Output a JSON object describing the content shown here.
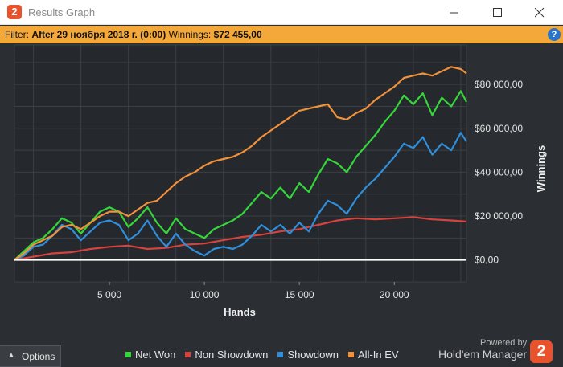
{
  "window": {
    "title": "Results Graph",
    "app_icon_glyph": "2"
  },
  "filter": {
    "label": "Filter:",
    "value": "After 29 ноября 2018 г. (0:00)",
    "winnings_label": "Winnings:",
    "winnings_value": "$72 455,00",
    "help_glyph": "?"
  },
  "chart_data": {
    "type": "line",
    "xlabel": "Hands",
    "ylabel": "Winnings",
    "xlim": [
      0,
      23800
    ],
    "ylim": [
      -10000,
      98000
    ],
    "x_ticks": [
      5000,
      10000,
      15000,
      20000
    ],
    "x_tick_labels": [
      "5 000",
      "10 000",
      "15 000",
      "20 000"
    ],
    "y_ticks": [
      0,
      20000,
      40000,
      60000,
      80000
    ],
    "y_tick_labels": [
      "$0,00",
      "$20 000,00",
      "$40 000,00",
      "$60 000,00",
      "$80 000,00"
    ],
    "grid": true,
    "legend_position": "bottom",
    "colors": {
      "background": "#25282c",
      "grid": "#3c4046",
      "zero_line": "#ffffff"
    },
    "series": [
      {
        "name": "Net Won",
        "color": "#35d63a",
        "x": [
          0,
          500,
          1000,
          1500,
          2000,
          2500,
          3000,
          3500,
          4000,
          4500,
          5000,
          5500,
          6000,
          6500,
          7000,
          7500,
          8000,
          8500,
          9000,
          9500,
          10000,
          10500,
          11000,
          11500,
          12000,
          12500,
          13000,
          13500,
          14000,
          14500,
          15000,
          15500,
          16000,
          16500,
          17000,
          17500,
          18000,
          18500,
          19000,
          19500,
          20000,
          20500,
          21000,
          21500,
          22000,
          22500,
          23000,
          23500,
          23800
        ],
        "y": [
          0,
          4000,
          8000,
          10000,
          14000,
          19000,
          17000,
          12000,
          17000,
          22000,
          24000,
          22000,
          15000,
          19000,
          24000,
          17000,
          12000,
          19000,
          14000,
          12000,
          10000,
          14000,
          16000,
          18000,
          21000,
          26000,
          31000,
          28000,
          33000,
          28000,
          35000,
          31000,
          39000,
          46000,
          44000,
          40000,
          47000,
          52000,
          57000,
          63000,
          68000,
          75000,
          71000,
          76000,
          66000,
          74000,
          70000,
          77000,
          72000
        ]
      },
      {
        "name": "Non Showdown",
        "color": "#d6433f",
        "x": [
          0,
          1000,
          2000,
          3000,
          4000,
          5000,
          6000,
          7000,
          8000,
          9000,
          10000,
          11000,
          12000,
          13000,
          14000,
          15000,
          16000,
          17000,
          18000,
          19000,
          20000,
          21000,
          22000,
          23000,
          23800
        ],
        "y": [
          0,
          1500,
          3000,
          3500,
          5000,
          6000,
          6500,
          5000,
          5500,
          7000,
          7500,
          9000,
          10500,
          11500,
          13000,
          14000,
          16000,
          18000,
          19000,
          18500,
          19000,
          19500,
          18500,
          18000,
          17500
        ]
      },
      {
        "name": "Showdown",
        "color": "#2f8fdb",
        "x": [
          0,
          500,
          1000,
          1500,
          2000,
          2500,
          3000,
          3500,
          4000,
          4500,
          5000,
          5500,
          6000,
          6500,
          7000,
          7500,
          8000,
          8500,
          9000,
          9500,
          10000,
          10500,
          11000,
          11500,
          12000,
          12500,
          13000,
          13500,
          14000,
          14500,
          15000,
          15500,
          16000,
          16500,
          17000,
          17500,
          18000,
          18500,
          19000,
          19500,
          20000,
          20500,
          21000,
          21500,
          22000,
          22500,
          23000,
          23500,
          23800
        ],
        "y": [
          0,
          2000,
          6000,
          7000,
          11000,
          16000,
          14000,
          9000,
          13000,
          17000,
          18000,
          16000,
          9000,
          12000,
          18000,
          11000,
          6000,
          12000,
          7000,
          4000,
          2000,
          5000,
          6000,
          5000,
          7000,
          11000,
          16000,
          13000,
          16000,
          12000,
          17000,
          13000,
          21000,
          27000,
          25000,
          21000,
          28000,
          33000,
          37000,
          42000,
          47000,
          53000,
          51000,
          56000,
          48000,
          53000,
          50000,
          58000,
          54000
        ]
      },
      {
        "name": "All-In EV",
        "color": "#f1913a",
        "x": [
          0,
          500,
          1000,
          1500,
          2000,
          2500,
          3000,
          3500,
          4000,
          4500,
          5000,
          5500,
          6000,
          6500,
          7000,
          7500,
          8000,
          8500,
          9000,
          9500,
          10000,
          10500,
          11000,
          11500,
          12000,
          12500,
          13000,
          13500,
          14000,
          14500,
          15000,
          15500,
          16000,
          16500,
          17000,
          17500,
          18000,
          18500,
          19000,
          19500,
          20000,
          20500,
          21000,
          21500,
          22000,
          22500,
          23000,
          23500,
          23800
        ],
        "y": [
          0,
          3000,
          7000,
          9000,
          11000,
          15000,
          16000,
          14000,
          17000,
          20000,
          22000,
          22000,
          20000,
          23000,
          26000,
          27000,
          31000,
          35000,
          38000,
          40000,
          43000,
          45000,
          46000,
          47000,
          49000,
          52000,
          56000,
          59000,
          62000,
          65000,
          68000,
          69000,
          70000,
          71000,
          65000,
          64000,
          67000,
          69000,
          73000,
          76000,
          79000,
          83000,
          84000,
          85000,
          84000,
          86000,
          88000,
          87000,
          85000
        ]
      }
    ]
  },
  "bottom": {
    "options_caret": "▲",
    "options_label": "Options",
    "powered_by": "Powered by",
    "brand_name": "Hold'em Manager",
    "brand_badge": "2"
  }
}
